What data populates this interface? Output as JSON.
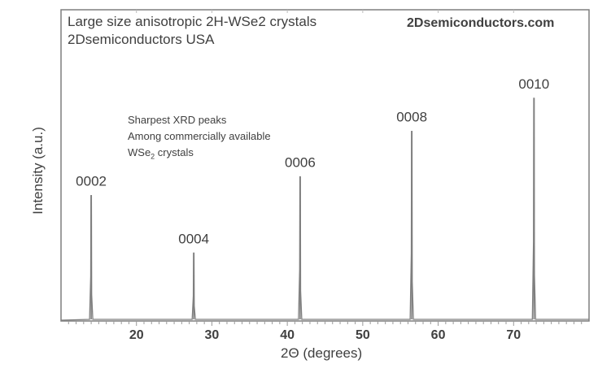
{
  "chart_data": {
    "type": "line",
    "title": [
      "Large size anisotropic 2H-WSe2 crystals",
      "2Dsemiconductors USA"
    ],
    "watermark": "2Dsemiconductors.com",
    "annotation": [
      "Sharpest XRD peaks",
      "Among commercially available",
      "WSe",
      "2",
      " crystals"
    ],
    "xlabel": "2Θ (degrees)",
    "ylabel": "Intensity (a.u.)",
    "xlim": [
      10,
      80
    ],
    "ylim": [
      0,
      140
    ],
    "xticks": [
      20,
      30,
      40,
      50,
      60,
      70
    ],
    "grid": false,
    "line_color": "#7f7f7f",
    "peaks": [
      {
        "label": "0002",
        "x": 14.0,
        "y": 56
      },
      {
        "label": "0004",
        "x": 27.6,
        "y": 30
      },
      {
        "label": "0006",
        "x": 41.7,
        "y": 64.5
      },
      {
        "label": "0008",
        "x": 56.5,
        "y": 85
      },
      {
        "label": "0010",
        "x": 72.7,
        "y": 100
      }
    ]
  }
}
